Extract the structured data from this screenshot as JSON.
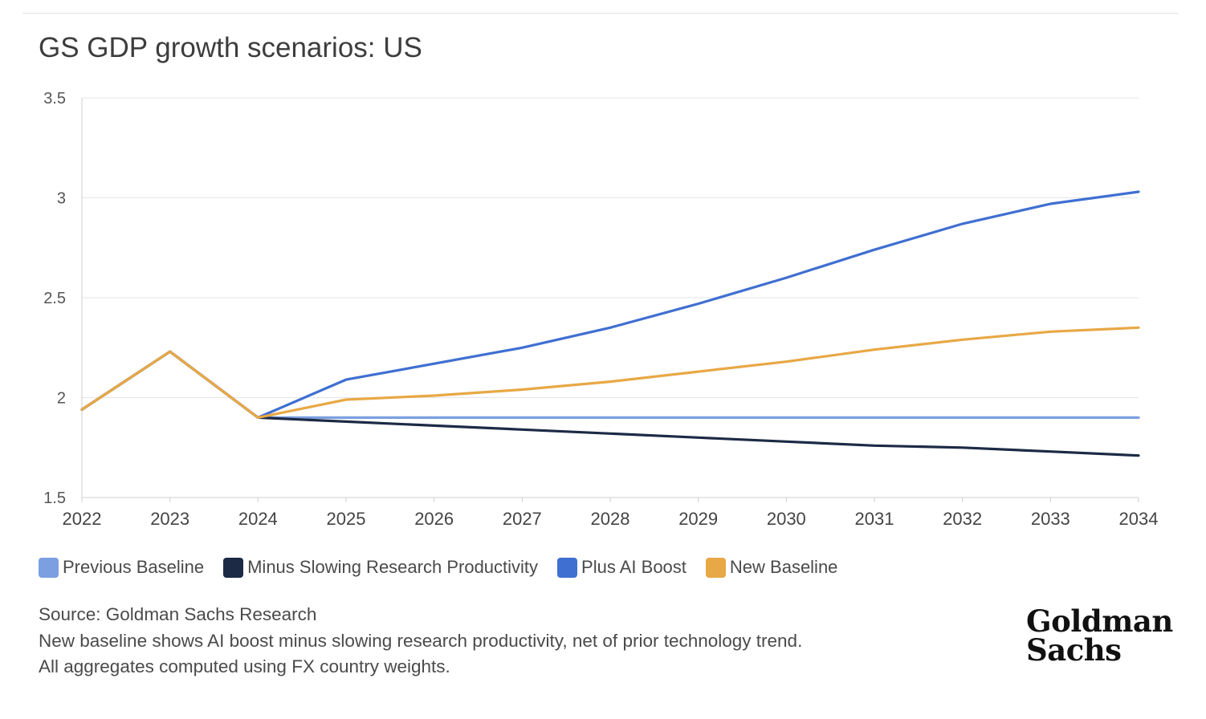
{
  "title": "GS GDP growth scenarios: US",
  "source_line": "Source: Goldman Sachs Research",
  "note_line_1": "New baseline shows AI boost minus slowing research productivity, net of prior technology trend.",
  "note_line_2": "All aggregates computed using FX country weights.",
  "logo": {
    "line1": "Goldman",
    "line2": "Sachs"
  },
  "chart_data": {
    "type": "line",
    "title": "GS GDP growth scenarios: US",
    "x": [
      "2022",
      "2023",
      "2024",
      "2025",
      "2026",
      "2027",
      "2028",
      "2029",
      "2030",
      "2031",
      "2032",
      "2033",
      "2034"
    ],
    "ylim": [
      1.5,
      3.5
    ],
    "yticks": [
      "1.5",
      "2",
      "2.5",
      "3",
      "3.5"
    ],
    "grid": true,
    "legend_position": "bottom-left",
    "series": [
      {
        "name": "Previous Baseline",
        "color": "#7b9fe0",
        "values": [
          1.94,
          2.23,
          1.9,
          1.9,
          1.9,
          1.9,
          1.9,
          1.9,
          1.9,
          1.9,
          1.9,
          1.9,
          1.9
        ]
      },
      {
        "name": "Minus Slowing Research Productivity",
        "color": "#1c2a45",
        "values": [
          1.94,
          2.23,
          1.9,
          1.88,
          1.86,
          1.84,
          1.82,
          1.8,
          1.78,
          1.76,
          1.75,
          1.73,
          1.71
        ]
      },
      {
        "name": "Plus AI Boost",
        "color": "#3f6fd1",
        "values": [
          1.94,
          2.23,
          1.9,
          2.09,
          2.17,
          2.25,
          2.35,
          2.47,
          2.6,
          2.74,
          2.87,
          2.97,
          3.03
        ]
      },
      {
        "name": "New Baseline",
        "color": "#e8a845",
        "values": [
          1.94,
          2.23,
          1.9,
          1.99,
          2.01,
          2.04,
          2.08,
          2.13,
          2.18,
          2.24,
          2.29,
          2.33,
          2.35
        ]
      }
    ]
  }
}
